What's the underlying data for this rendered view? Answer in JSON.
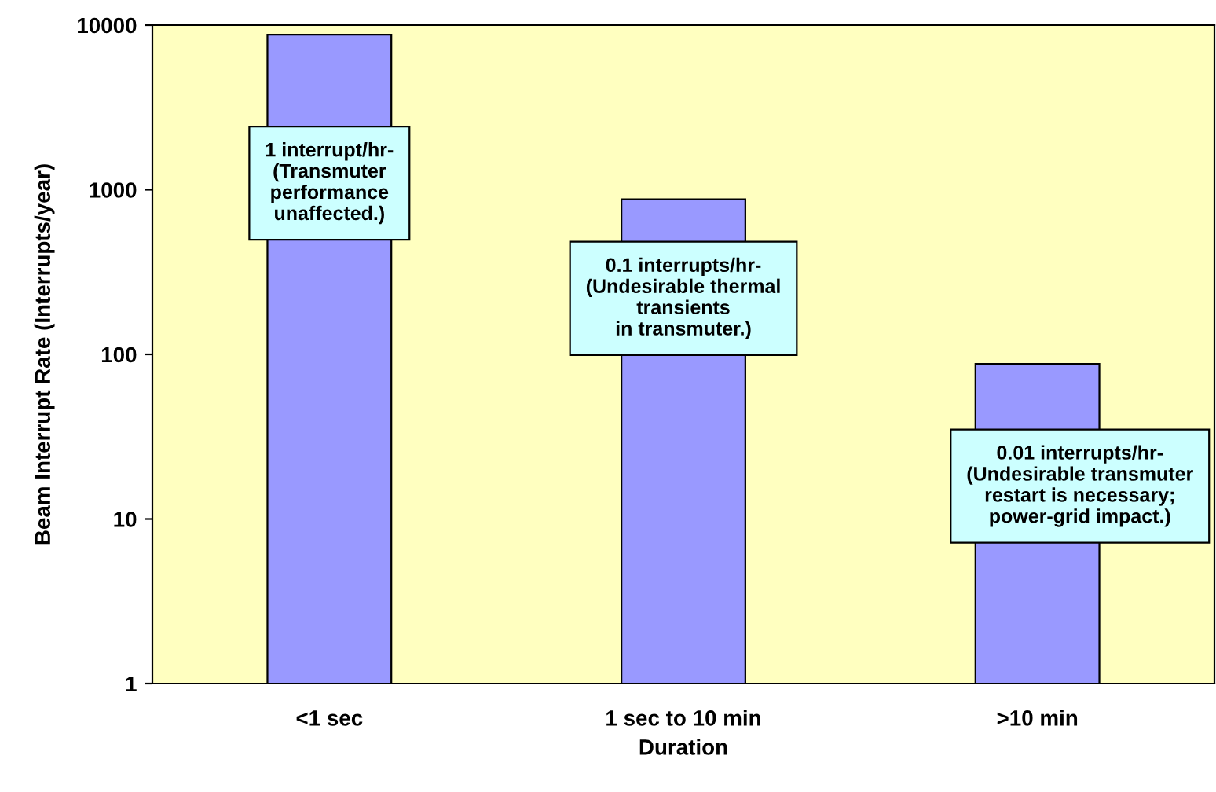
{
  "chart_data": {
    "type": "bar",
    "xlabel": "Duration",
    "ylabel": "Beam Interrupt Rate (Interrupts/year)",
    "categories": [
      "<1 sec",
      "1 sec to 10 min",
      ">10 min"
    ],
    "values": [
      8760,
      876,
      87.6
    ],
    "color": "#9999ff",
    "log": "y",
    "ylim": [
      1,
      10000
    ],
    "yticks": [
      1,
      10,
      100,
      1000,
      10000
    ],
    "grid": false,
    "legend": false,
    "annotations": [
      "1 interrupt/hr-\n(Transmuter\nperformance\nunaffected.)",
      "0.1 interrupts/hr-\n(Undesirable thermal\ntransients\nin transmuter.)",
      "0.01 interrupts/hr-\n(Undesirable transmuter\nrestart is necessary;\npower-grid impact.)"
    ]
  }
}
